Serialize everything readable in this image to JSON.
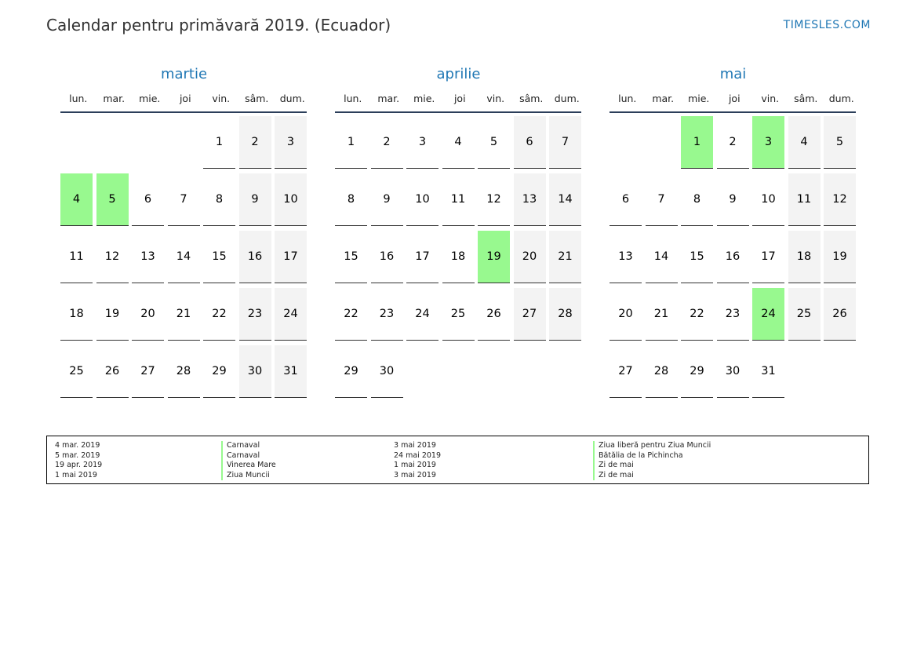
{
  "header": {
    "title": "Calendar pentru primăvară 2019. (Ecuador)",
    "brand": "TIMESLES.COM"
  },
  "weekdays": [
    "lun.",
    "mar.",
    "mie.",
    "joi",
    "vin.",
    "sâm.",
    "dum."
  ],
  "months": [
    {
      "name": "martie",
      "first_weekday": 4,
      "days": 31,
      "holidays": [
        4,
        5
      ]
    },
    {
      "name": "aprilie",
      "first_weekday": 0,
      "days": 30,
      "holidays": [
        19
      ]
    },
    {
      "name": "mai",
      "first_weekday": 2,
      "days": 31,
      "holidays": [
        1,
        3,
        24
      ]
    }
  ],
  "colors": {
    "holiday": "#98f98f",
    "weekend": "#f3f3f3",
    "accent": "#1f77b4"
  },
  "legend": {
    "left_dates": [
      "4 mar. 2019",
      "5 mar. 2019",
      "19 apr. 2019",
      "1 mai 2019"
    ],
    "left_names": [
      "Carnaval",
      "Carnaval",
      "Vinerea Mare",
      "Ziua Muncii"
    ],
    "right_dates": [
      "3 mai 2019",
      "24 mai 2019",
      "1 mai 2019",
      "3 mai 2019"
    ],
    "right_names": [
      "Ziua liberă pentru Ziua Muncii",
      "Bătălia de la Pichincha",
      "Zi de mai",
      "Zi de mai"
    ]
  }
}
